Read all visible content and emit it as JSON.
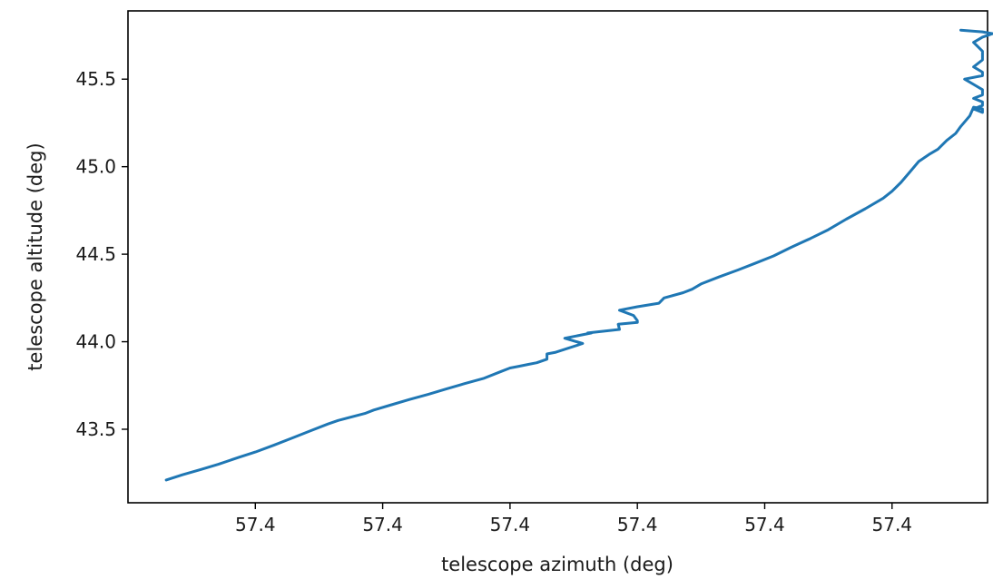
{
  "chart_data": {
    "type": "line",
    "title": "",
    "xlabel": "telescope azimuth (deg)",
    "ylabel": "telescope altitude (deg)",
    "xlim": [
      0.0,
      6.75
    ],
    "ylim": [
      43.08,
      45.89
    ],
    "x_ticks": [
      {
        "value": 1.0,
        "label": "57.4"
      },
      {
        "value": 2.0,
        "label": "57.4"
      },
      {
        "value": 3.0,
        "label": "57.4"
      },
      {
        "value": 4.0,
        "label": "57.4"
      },
      {
        "value": 5.0,
        "label": "57.4"
      },
      {
        "value": 6.0,
        "label": "57.4"
      }
    ],
    "y_ticks": [
      {
        "value": 43.5,
        "label": "43.5"
      },
      {
        "value": 44.0,
        "label": "44.0"
      },
      {
        "value": 44.5,
        "label": "44.5"
      },
      {
        "value": 45.0,
        "label": "45.0"
      },
      {
        "value": 45.5,
        "label": "45.5"
      }
    ],
    "grid": false,
    "legend": false,
    "series": [
      {
        "color": "#1f77b4",
        "x": [
          0.3,
          0.43,
          0.57,
          0.71,
          0.87,
          1.0,
          1.15,
          1.29,
          1.43,
          1.57,
          1.57,
          1.65,
          1.86,
          1.93,
          2.07,
          2.21,
          2.36,
          2.5,
          2.64,
          2.79,
          2.93,
          3.0,
          3.07,
          3.14,
          3.21,
          3.29,
          3.29,
          3.36,
          3.57,
          3.43,
          3.64,
          3.61,
          3.86,
          3.85,
          4.0,
          4.0,
          3.97,
          3.86,
          4.0,
          4.17,
          4.21,
          4.36,
          4.43,
          4.5,
          4.64,
          4.79,
          4.93,
          5.07,
          5.21,
          5.36,
          5.5,
          5.64,
          5.79,
          5.93,
          6.0,
          6.07,
          6.14,
          6.21,
          6.29,
          6.36,
          6.43,
          6.5,
          6.54,
          6.61,
          6.64,
          6.71,
          6.71,
          6.64,
          6.71,
          6.71,
          6.64,
          6.71,
          6.71,
          6.64,
          6.57,
          6.71,
          6.71,
          6.64,
          6.71,
          6.71,
          6.64,
          6.71,
          6.79,
          6.71,
          6.54
        ],
        "y": [
          43.21,
          43.24,
          43.27,
          43.3,
          43.34,
          43.37,
          43.41,
          43.45,
          43.49,
          43.53,
          43.53,
          43.55,
          43.59,
          43.61,
          43.64,
          43.67,
          43.7,
          43.73,
          43.76,
          43.79,
          43.83,
          43.85,
          43.86,
          43.87,
          43.88,
          43.9,
          43.93,
          43.94,
          43.99,
          44.02,
          44.05,
          44.05,
          44.07,
          44.1,
          44.11,
          44.12,
          44.15,
          44.18,
          44.2,
          44.22,
          44.25,
          44.28,
          44.3,
          44.33,
          44.37,
          44.41,
          44.45,
          44.49,
          44.54,
          44.59,
          44.64,
          44.7,
          44.76,
          44.82,
          44.86,
          44.91,
          44.97,
          45.03,
          45.07,
          45.1,
          45.15,
          45.19,
          45.23,
          45.29,
          45.34,
          45.33,
          45.31,
          45.33,
          45.35,
          45.37,
          45.39,
          45.41,
          45.44,
          45.47,
          45.5,
          45.52,
          45.54,
          45.57,
          45.61,
          45.66,
          45.71,
          45.74,
          45.76,
          45.77,
          45.78
        ]
      }
    ]
  }
}
